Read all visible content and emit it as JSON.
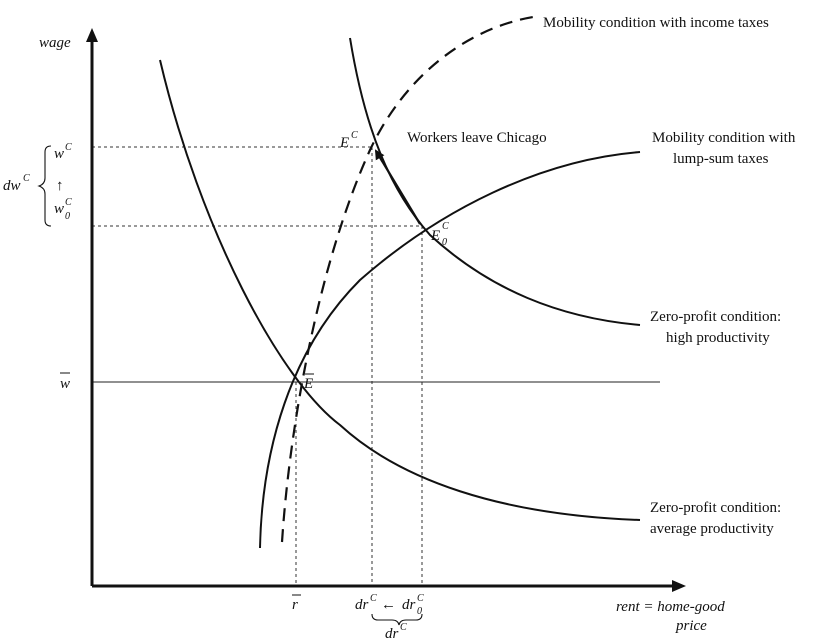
{
  "axes": {
    "y_label": "wage",
    "x_label_line1": "rent = home-good",
    "x_label_line2": "price"
  },
  "curves": {
    "mobility_income_taxes": "Mobility condition with income taxes",
    "mobility_lump_sum_line1": "Mobility condition with",
    "mobility_lump_sum_line2": "lump-sum taxes",
    "zero_profit_high_line1": "Zero-profit condition:",
    "zero_profit_high_line2": "high productivity",
    "zero_profit_avg_line1": "Zero-profit condition:",
    "zero_profit_avg_line2": "average productivity"
  },
  "annotations": {
    "workers_leave": "Workers leave Chicago"
  },
  "points": {
    "E_bar": "E",
    "E_C": "E",
    "E_C_sup": "C",
    "E0_C": "E",
    "E0_C_sup": "C",
    "E0_C_sub": "0"
  },
  "y_ticks": {
    "w_bar": "w",
    "w_C": "w",
    "w_C_sup": "C",
    "w0_C": "w",
    "w0_C_sup": "C",
    "w0_C_sub": "0",
    "dw_C": "dw",
    "dw_C_sup": "C",
    "up_arrow": "↑"
  },
  "x_ticks": {
    "r_bar": "r",
    "dr_C_left": "dr",
    "dr_C_left_sup": "C",
    "left_arrow": "←",
    "dr0_C": "dr",
    "dr0_C_sup": "C",
    "dr0_C_sub": "0",
    "dr_C_brace": "dr",
    "dr_C_brace_sup": "C"
  }
}
